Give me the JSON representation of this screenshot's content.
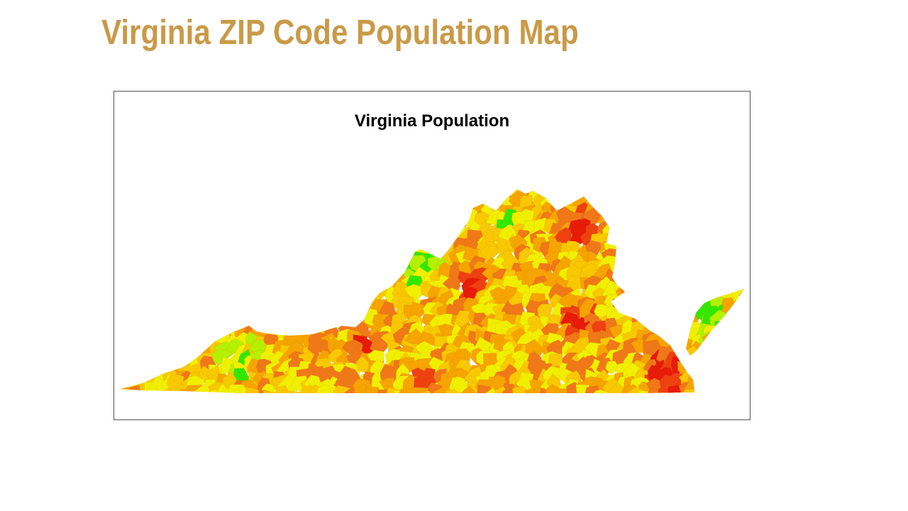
{
  "slide": {
    "title": "Virginia ZIP Code Population Map"
  },
  "map": {
    "title": "Virginia Population",
    "region": "Virginia",
    "unit": "ZIP code",
    "color_scale": [
      "#32e800",
      "#b4f000",
      "#f0ef00",
      "#f8c800",
      "#f6a400",
      "#f07818",
      "#ee4010",
      "#e81a08"
    ]
  }
}
